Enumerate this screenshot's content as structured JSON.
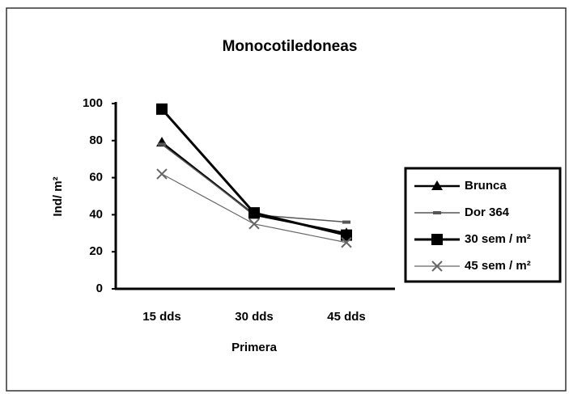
{
  "chart_data": {
    "type": "line",
    "title": "Monocotiledoneas",
    "categories": [
      "15 dds",
      "30 dds",
      "45 dds"
    ],
    "x_label": "Primera",
    "y_label": "Ind/ m²",
    "ylim": [
      0,
      100
    ],
    "yticks": [
      0,
      20,
      40,
      60,
      80,
      100
    ],
    "grid": false,
    "legend": "right",
    "series": [
      {
        "name": "Brunca",
        "color": "#000000",
        "marker": "triangle",
        "values": [
          79,
          40,
          30
        ]
      },
      {
        "name": "Dor 364",
        "color": "#555555",
        "marker": "dash",
        "values": [
          78,
          40,
          36
        ]
      },
      {
        "name": "30 sem / m²",
        "color": "#000000",
        "marker": "square",
        "values": [
          97,
          41,
          29
        ]
      },
      {
        "name": "45 sem / m²",
        "color": "#666666",
        "marker": "x",
        "values": [
          62,
          35,
          25
        ]
      }
    ]
  }
}
